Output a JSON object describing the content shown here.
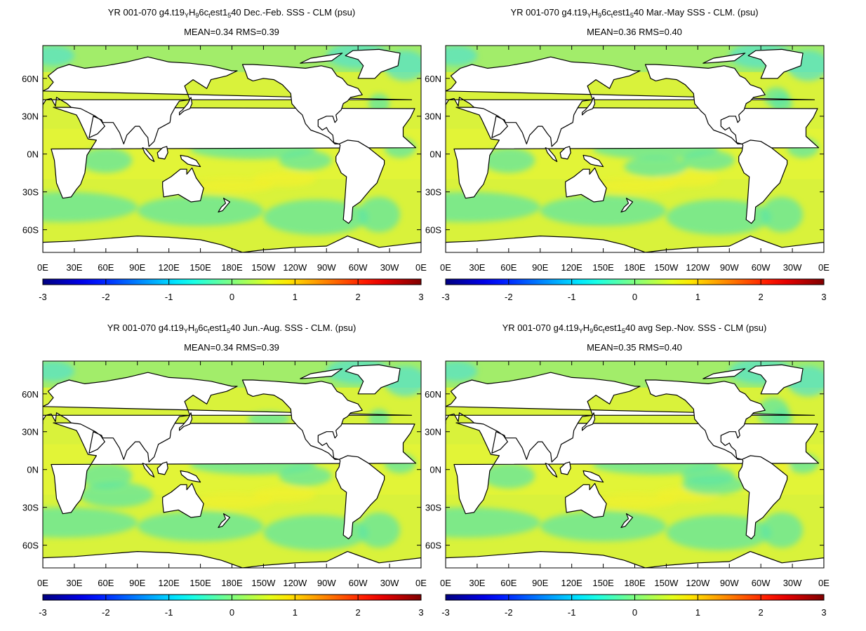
{
  "figure": {
    "panels": [
      {
        "id": "djf",
        "title_prefix": "YR 001-070 g4.t19",
        "title_sub1": "Y",
        "title_mid1": "H",
        "title_sub2": "9",
        "title_mid2": "6c",
        "title_sub3": "t",
        "title_mid3": "est1",
        "title_sub4": "5",
        "title_suffix": "40  Dec.-Feb. SSS - CLM (psu)",
        "stats": "MEAN=0.34   RMS=0.39",
        "variable": "SSS - CLM",
        "units": "psu",
        "season": "Dec.-Feb.",
        "mean": 0.34,
        "rms": 0.39
      },
      {
        "id": "mam",
        "title_prefix": "YR 001-070 g4.t19",
        "title_sub1": "Y",
        "title_mid1": "H",
        "title_sub2": "9",
        "title_mid2": "6c",
        "title_sub3": "t",
        "title_mid3": "est1",
        "title_sub4": "5",
        "title_suffix": "40 Mar.-May SSS - CLM. (psu)",
        "stats": "MEAN=0.36   RMS=0.40",
        "variable": "SSS - CLM.",
        "units": "psu",
        "season": "Mar.-May",
        "mean": 0.36,
        "rms": 0.4
      },
      {
        "id": "jja",
        "title_prefix": "YR 001-070 g4.t19",
        "title_sub1": "Y",
        "title_mid1": "H",
        "title_sub2": "9",
        "title_mid2": "6c",
        "title_sub3": "t",
        "title_mid3": "est1",
        "title_sub4": "5",
        "title_suffix": "40 Jun.-Aug. SSS - CLM. (psu)",
        "stats": "MEAN=0.34   RMS=0.39",
        "variable": "SSS - CLM.",
        "units": "psu",
        "season": "Jun.-Aug.",
        "mean": 0.34,
        "rms": 0.39
      },
      {
        "id": "son",
        "title_prefix": "YR 001-070 g4.t19",
        "title_sub1": "Y",
        "title_mid1": "H",
        "title_sub2": "9",
        "title_mid2": "6c",
        "title_sub3": "t",
        "title_mid3": "est1",
        "title_sub4": "5",
        "title_suffix": "40 avg Sep.-Nov. SSS - CLM (psu)",
        "stats": "MEAN=0.35   RMS=0.40",
        "variable": "SSS - CLM",
        "units": "psu",
        "season": "Sep.-Nov.",
        "mean": 0.35,
        "rms": 0.4
      }
    ],
    "x_ticks": [
      "0E",
      "30E",
      "60E",
      "90E",
      "120E",
      "150E",
      "180E",
      "150W",
      "120W",
      "90W",
      "60W",
      "30W",
      "0E"
    ],
    "y_ticks": [
      "60N",
      "30N",
      "0N",
      "30S",
      "60S"
    ],
    "y_tick_values": [
      60,
      30,
      0,
      -30,
      -60
    ],
    "lat_range": [
      -78,
      86
    ],
    "colorbar": {
      "ticks": [
        "-3",
        "-2",
        "-1",
        "0",
        "1",
        "2",
        "3"
      ],
      "range": [
        -3,
        3
      ],
      "colormap": "jet",
      "land_color": "#ffffff",
      "coast_color": "#000000"
    },
    "ocean_palette": {
      "base": "#d9f23b",
      "base_alt": "#e8f536",
      "fresh": "#5fe6a3",
      "fresher": "#55e2c8",
      "salty": "#f2f02b"
    }
  }
}
